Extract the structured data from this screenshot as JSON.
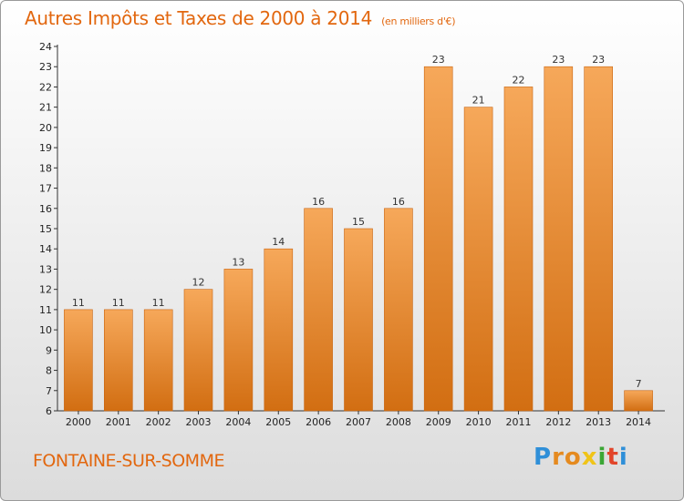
{
  "title": {
    "main": "Autres Impôts et Taxes de 2000 à 2014",
    "unit": "(en milliers d'€)"
  },
  "commune": "FONTAINE-SUR-SOMME",
  "logo": {
    "text": "Proxiti"
  },
  "colors": {
    "accent": "#e2670f",
    "bar_light": "#f6a85a",
    "bar_dark": "#d26e12"
  },
  "chart_data": {
    "type": "bar",
    "title": "Autres Impôts et Taxes de 2000 à 2014",
    "subtitle": "(en milliers d'€)",
    "xlabel": "",
    "ylabel": "",
    "categories": [
      "2000",
      "2001",
      "2002",
      "2003",
      "2004",
      "2005",
      "2006",
      "2007",
      "2008",
      "2009",
      "2010",
      "2011",
      "2012",
      "2013",
      "2014"
    ],
    "values": [
      11,
      11,
      11,
      12,
      13,
      14,
      16,
      15,
      16,
      23,
      21,
      22,
      23,
      23,
      7
    ],
    "ylim": [
      6,
      24
    ],
    "yticks": [
      6,
      7,
      8,
      9,
      10,
      11,
      12,
      13,
      14,
      15,
      16,
      17,
      18,
      19,
      20,
      21,
      22,
      23,
      24
    ],
    "grid": false,
    "legend": "none"
  }
}
